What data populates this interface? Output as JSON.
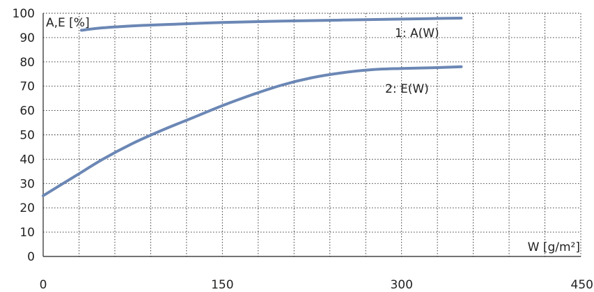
{
  "chart_data": {
    "type": "line",
    "ylabel": "A,E [%]",
    "xlabel": "W [g/m²]",
    "xlim": [
      0,
      450
    ],
    "ylim": [
      0,
      100
    ],
    "x_ticks": [
      0,
      150,
      300,
      450
    ],
    "y_ticks": [
      0,
      10,
      20,
      30,
      40,
      50,
      60,
      70,
      80,
      90,
      100
    ],
    "x_grid_step": 30,
    "grid": true,
    "legend": "none",
    "series_color": "#6b87b5",
    "series": [
      {
        "name": "1: A(W)",
        "x": [
          32,
          50,
          75,
          100,
          150,
          200,
          250,
          300,
          350
        ],
        "values": [
          93,
          94,
          94.8,
          95.3,
          96.2,
          96.8,
          97.2,
          97.6,
          98
        ]
      },
      {
        "name": "2: E(W)",
        "x": [
          0,
          15,
          30,
          50,
          75,
          100,
          125,
          150,
          175,
          200,
          225,
          250,
          275,
          300,
          325,
          350
        ],
        "values": [
          25,
          29.5,
          34,
          40,
          46.5,
          52,
          57,
          62,
          66.5,
          70.5,
          73.5,
          75.5,
          76.8,
          77.3,
          77.6,
          78
        ]
      }
    ]
  }
}
